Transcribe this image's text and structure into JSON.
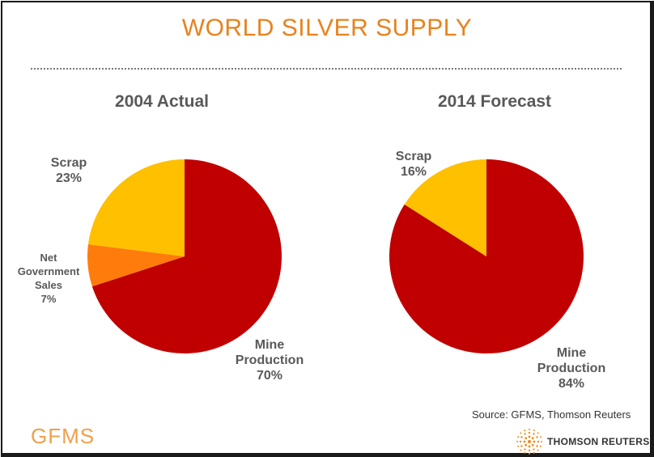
{
  "page": {
    "title": "WORLD SILVER SUPPLY",
    "source": "Source: GFMS, Thomson Reuters",
    "logo_left": "GFMS",
    "logo_right": "THOMSON REUTERS"
  },
  "colors": {
    "mine": "#c00000",
    "scrap": "#ffc000",
    "gov": "#ff7c0c",
    "title": "#e8821e"
  },
  "chart_data": [
    {
      "type": "pie",
      "title": "2004 Actual",
      "slices": [
        {
          "label": "Mine Production",
          "value": 70,
          "text": "70%"
        },
        {
          "label": "Net Government Sales",
          "value": 7,
          "text": "7%"
        },
        {
          "label": "Scrap",
          "value": 23,
          "text": "23%"
        }
      ]
    },
    {
      "type": "pie",
      "title": "2014 Forecast",
      "slices": [
        {
          "label": "Mine Production",
          "value": 84,
          "text": "84%"
        },
        {
          "label": "Scrap",
          "value": 16,
          "text": "16%"
        }
      ]
    }
  ]
}
